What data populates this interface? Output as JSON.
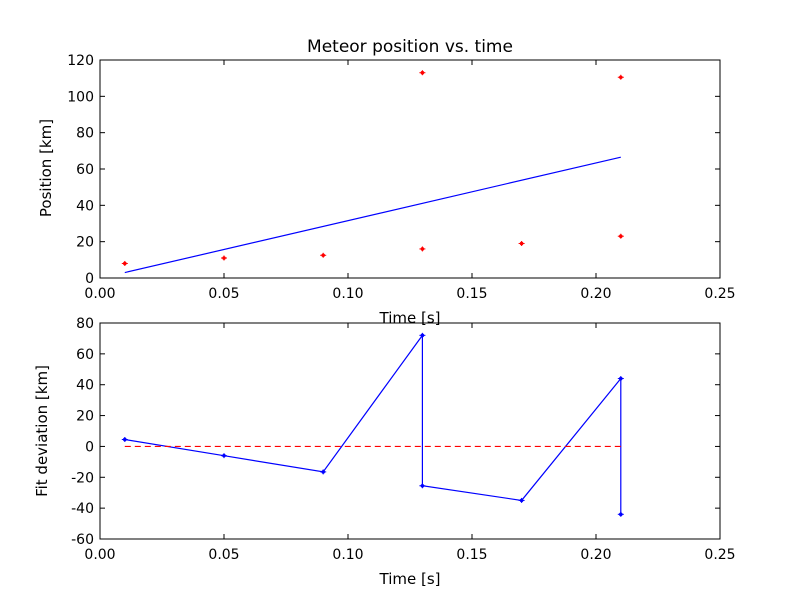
{
  "chart_data": [
    {
      "type": "scatter",
      "title": "Meteor position vs. time",
      "xlabel": "Time [s]",
      "ylabel": "Position [km]",
      "xlim": [
        0.0,
        0.25
      ],
      "ylim": [
        0,
        120
      ],
      "xticks": [
        "0.00",
        "0.05",
        "0.10",
        "0.15",
        "0.20",
        "0.25"
      ],
      "yticks": [
        "0",
        "20",
        "40",
        "60",
        "80",
        "100",
        "120"
      ],
      "grid": false,
      "series": [
        {
          "kind": "points",
          "color": "#ff0000",
          "marker": "error-bar-dot",
          "x": [
            0.01,
            0.05,
            0.09,
            0.13,
            0.13,
            0.17,
            0.21,
            0.21
          ],
          "y": [
            8,
            11,
            12.5,
            16,
            113,
            19,
            23,
            110.5
          ]
        },
        {
          "kind": "line",
          "color": "#0000ff",
          "x": [
            0.01,
            0.21
          ],
          "y": [
            3,
            66.5
          ]
        }
      ]
    },
    {
      "type": "line",
      "title": "",
      "xlabel": "Time [s]",
      "ylabel": "Fit deviation [km]",
      "xlim": [
        0.0,
        0.25
      ],
      "ylim": [
        -60,
        80
      ],
      "xticks": [
        "0.00",
        "0.05",
        "0.10",
        "0.15",
        "0.20",
        "0.25"
      ],
      "yticks": [
        "-60",
        "-40",
        "-20",
        "0",
        "20",
        "40",
        "60",
        "80"
      ],
      "grid": false,
      "series": [
        {
          "kind": "line-with-markers",
          "color": "#0000ff",
          "x": [
            0.01,
            0.05,
            0.09,
            0.13,
            0.13,
            0.17,
            0.21,
            0.21
          ],
          "y": [
            4.5,
            -6,
            -16.5,
            72,
            -25.5,
            -35,
            44,
            -44
          ]
        },
        {
          "kind": "dashed-line",
          "color": "#ff0000",
          "x": [
            0.01,
            0.21
          ],
          "y": [
            0,
            0
          ]
        }
      ]
    }
  ]
}
